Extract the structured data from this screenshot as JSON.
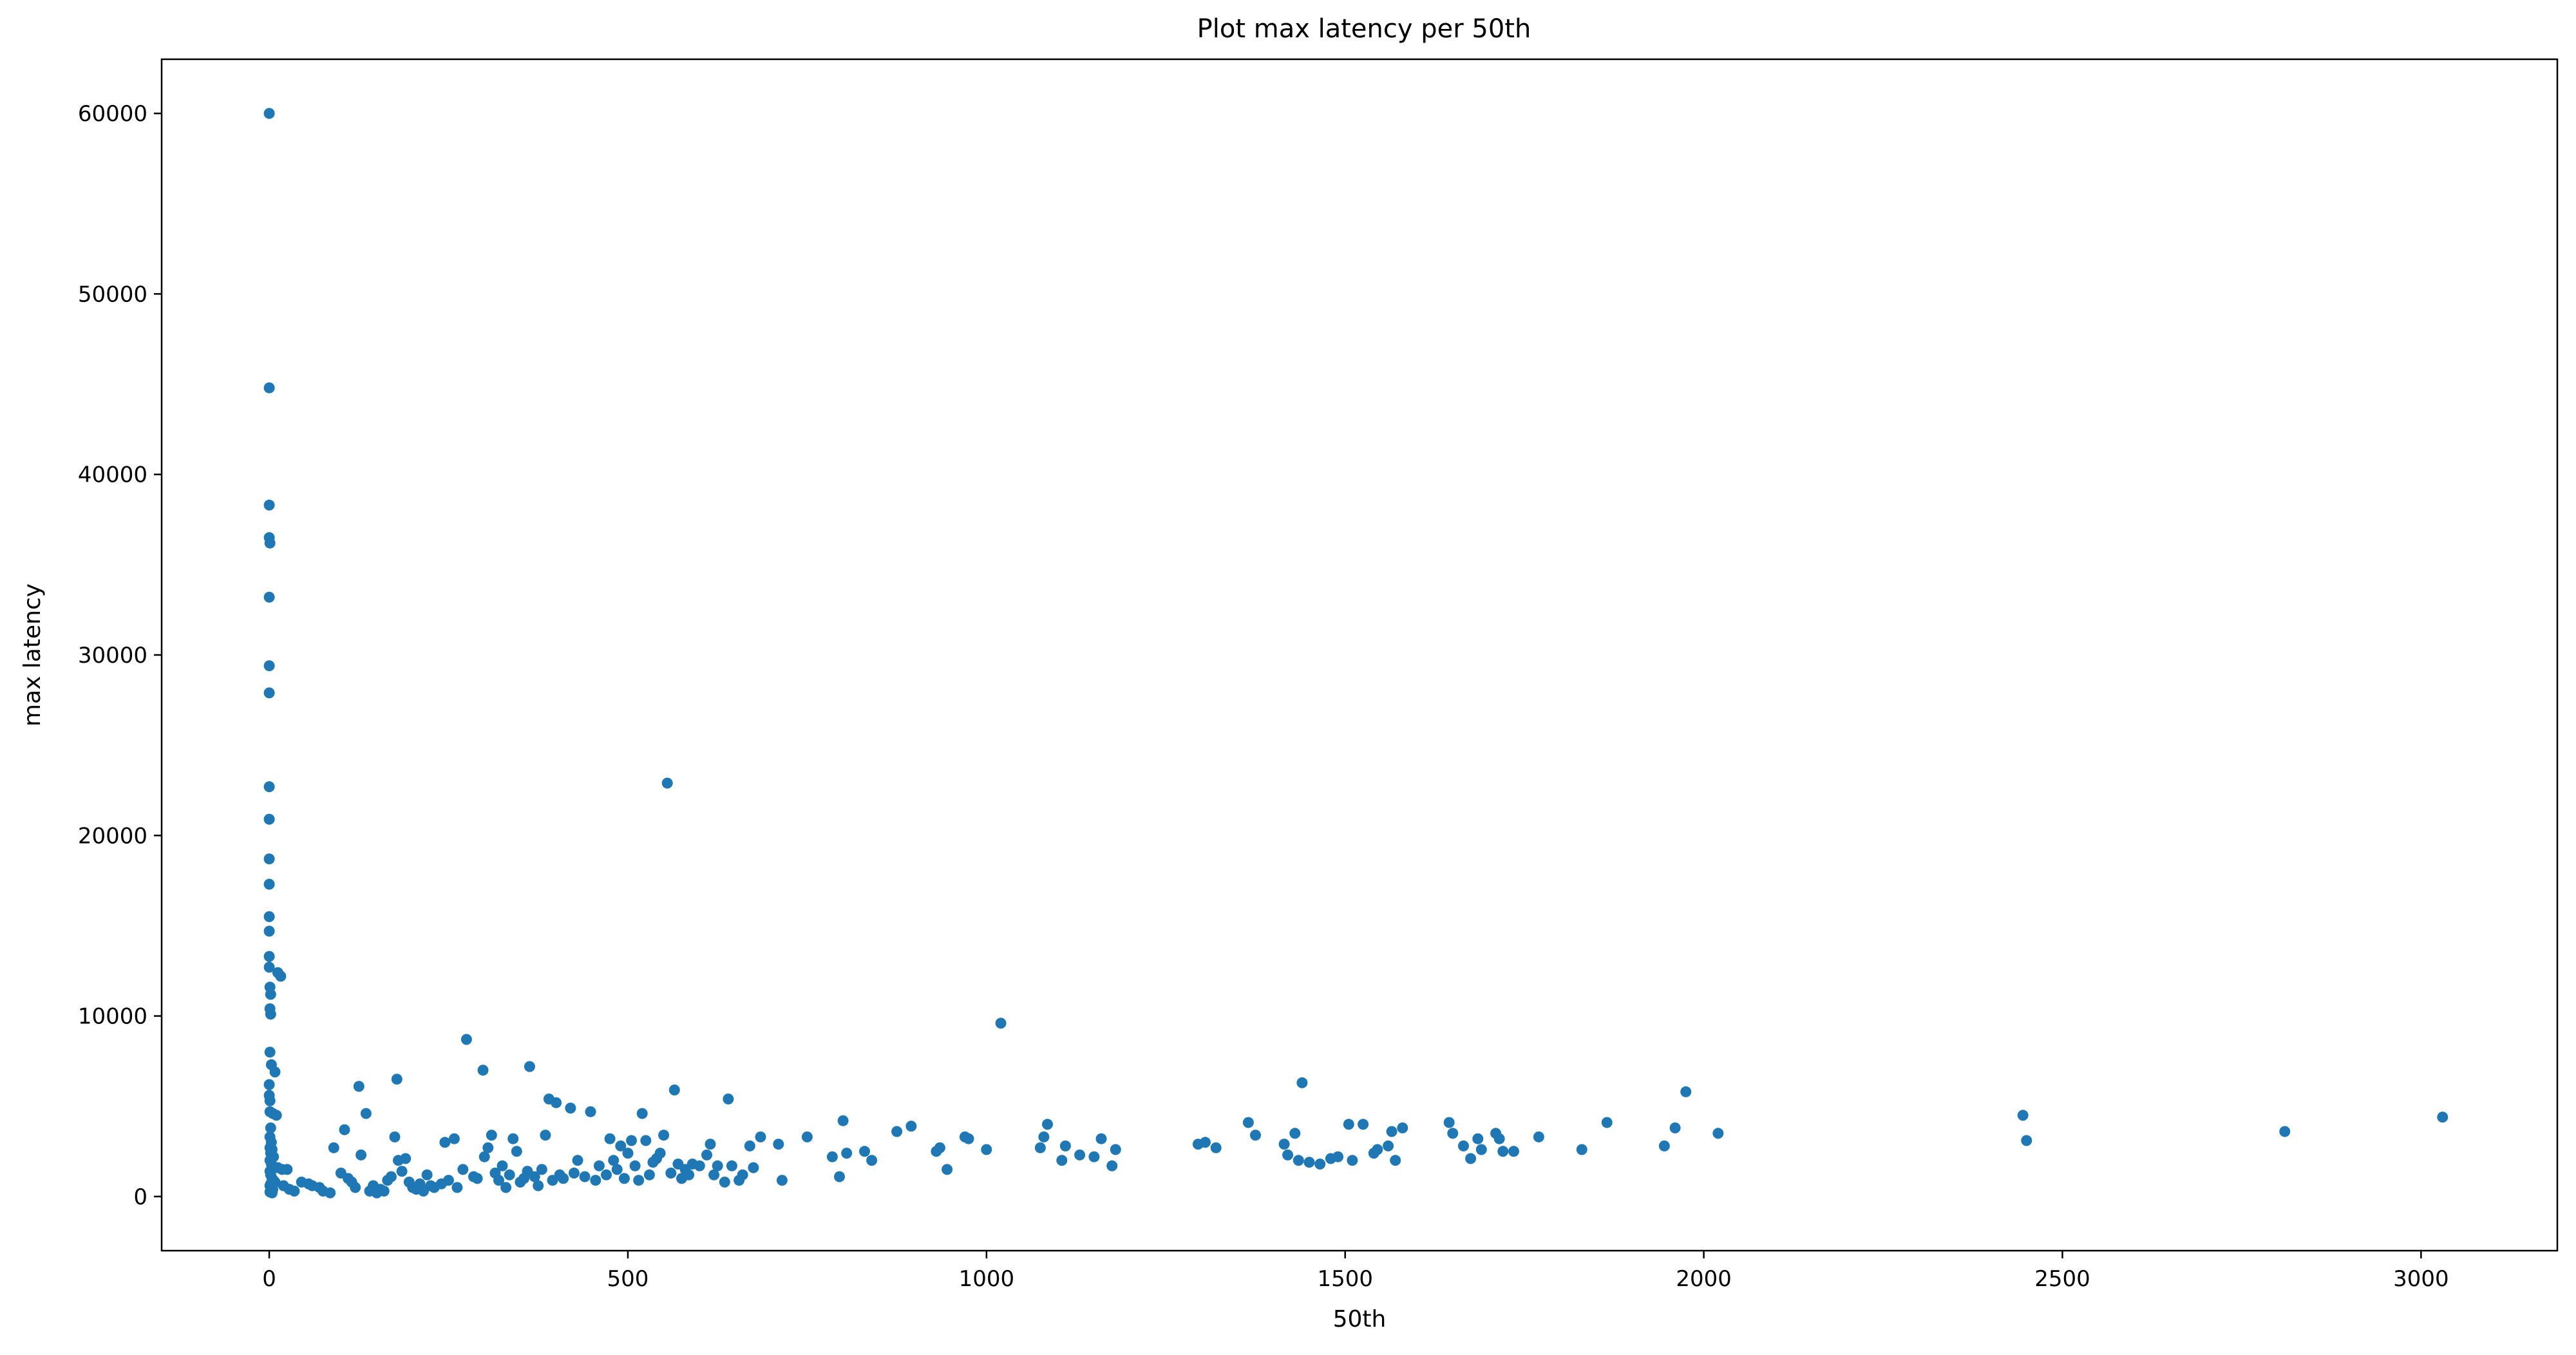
{
  "chart_data": {
    "type": "scatter",
    "title": "Plot max latency per 50th",
    "xlabel": "50th",
    "ylabel": "max latency",
    "xlim": [
      -150,
      3190
    ],
    "ylim": [
      -3000,
      63000
    ],
    "xticks": [
      0,
      500,
      1000,
      1500,
      2000,
      2500,
      3000
    ],
    "yticks": [
      0,
      10000,
      20000,
      30000,
      40000,
      50000,
      60000
    ],
    "xtick_labels": [
      "0",
      "500",
      "1000",
      "1500",
      "2000",
      "2500",
      "3000"
    ],
    "ytick_labels": [
      "0",
      "10000",
      "20000",
      "30000",
      "40000",
      "50000",
      "60000"
    ],
    "grid": false,
    "legend": "none",
    "marker_color": "#1f77b4",
    "points": [
      [
        0,
        60000
      ],
      [
        0,
        44800
      ],
      [
        0,
        38300
      ],
      [
        0,
        36500
      ],
      [
        1,
        36200
      ],
      [
        0,
        33200
      ],
      [
        0,
        29400
      ],
      [
        0,
        27900
      ],
      [
        0,
        22700
      ],
      [
        0,
        20900
      ],
      [
        0,
        18700
      ],
      [
        0,
        17300
      ],
      [
        0,
        15500
      ],
      [
        0,
        14700
      ],
      [
        0,
        13300
      ],
      [
        0,
        12700
      ],
      [
        1,
        11600
      ],
      [
        2,
        11200
      ],
      [
        1,
        10400
      ],
      [
        2,
        10100
      ],
      [
        1,
        8000
      ],
      [
        3,
        7300
      ],
      [
        8,
        6900
      ],
      [
        0,
        6200
      ],
      [
        0,
        5600
      ],
      [
        1,
        5300
      ],
      [
        1,
        4700
      ],
      [
        5,
        4600
      ],
      [
        10,
        4500
      ],
      [
        2,
        3800
      ],
      [
        1,
        3300
      ],
      [
        3,
        3000
      ],
      [
        1,
        2700
      ],
      [
        4,
        2600
      ],
      [
        2,
        2400
      ],
      [
        6,
        2200
      ],
      [
        1,
        2000
      ],
      [
        3,
        1800
      ],
      [
        5,
        1600
      ],
      [
        1,
        1400
      ],
      [
        2,
        1200
      ],
      [
        4,
        1000
      ],
      [
        6,
        900
      ],
      [
        8,
        800
      ],
      [
        2,
        700
      ],
      [
        1,
        600
      ],
      [
        3,
        500
      ],
      [
        5,
        400
      ],
      [
        2,
        300
      ],
      [
        1,
        250
      ],
      [
        4,
        200
      ],
      [
        12,
        12400
      ],
      [
        16,
        12200
      ],
      [
        12,
        1600
      ],
      [
        18,
        1500
      ],
      [
        25,
        1500
      ],
      [
        20,
        600
      ],
      [
        28,
        400
      ],
      [
        35,
        300
      ],
      [
        45,
        800
      ],
      [
        55,
        700
      ],
      [
        60,
        600
      ],
      [
        70,
        500
      ],
      [
        75,
        300
      ],
      [
        85,
        200
      ],
      [
        90,
        2700
      ],
      [
        100,
        1300
      ],
      [
        105,
        3700
      ],
      [
        110,
        1000
      ],
      [
        115,
        800
      ],
      [
        120,
        500
      ],
      [
        125,
        6100
      ],
      [
        128,
        2300
      ],
      [
        135,
        4600
      ],
      [
        140,
        300
      ],
      [
        145,
        600
      ],
      [
        150,
        200
      ],
      [
        155,
        400
      ],
      [
        160,
        300
      ],
      [
        165,
        900
      ],
      [
        170,
        1100
      ],
      [
        175,
        3300
      ],
      [
        178,
        6500
      ],
      [
        180,
        2000
      ],
      [
        185,
        1400
      ],
      [
        190,
        2100
      ],
      [
        195,
        800
      ],
      [
        200,
        500
      ],
      [
        205,
        400
      ],
      [
        210,
        700
      ],
      [
        215,
        300
      ],
      [
        220,
        1200
      ],
      [
        225,
        600
      ],
      [
        230,
        500
      ],
      [
        240,
        700
      ],
      [
        245,
        3000
      ],
      [
        250,
        900
      ],
      [
        258,
        3200
      ],
      [
        262,
        500
      ],
      [
        270,
        1500
      ],
      [
        275,
        8700
      ],
      [
        285,
        1100
      ],
      [
        290,
        1000
      ],
      [
        298,
        7000
      ],
      [
        300,
        2200
      ],
      [
        305,
        2700
      ],
      [
        310,
        3400
      ],
      [
        315,
        1300
      ],
      [
        320,
        900
      ],
      [
        325,
        1700
      ],
      [
        330,
        500
      ],
      [
        335,
        1200
      ],
      [
        340,
        3200
      ],
      [
        345,
        2500
      ],
      [
        350,
        800
      ],
      [
        355,
        1000
      ],
      [
        360,
        1400
      ],
      [
        363,
        7200
      ],
      [
        370,
        1100
      ],
      [
        375,
        600
      ],
      [
        380,
        1500
      ],
      [
        385,
        3400
      ],
      [
        390,
        5400
      ],
      [
        395,
        900
      ],
      [
        400,
        5200
      ],
      [
        405,
        1200
      ],
      [
        410,
        1000
      ],
      [
        420,
        4900
      ],
      [
        425,
        1300
      ],
      [
        430,
        2000
      ],
      [
        440,
        1100
      ],
      [
        448,
        4700
      ],
      [
        455,
        900
      ],
      [
        460,
        1700
      ],
      [
        470,
        1200
      ],
      [
        475,
        3200
      ],
      [
        480,
        2000
      ],
      [
        485,
        1500
      ],
      [
        490,
        2800
      ],
      [
        495,
        1000
      ],
      [
        500,
        2400
      ],
      [
        505,
        3100
      ],
      [
        510,
        1700
      ],
      [
        515,
        900
      ],
      [
        520,
        4600
      ],
      [
        525,
        3100
      ],
      [
        530,
        1200
      ],
      [
        535,
        1900
      ],
      [
        540,
        2100
      ],
      [
        545,
        2400
      ],
      [
        550,
        3400
      ],
      [
        555,
        22900
      ],
      [
        560,
        1300
      ],
      [
        565,
        5900
      ],
      [
        570,
        1800
      ],
      [
        575,
        1000
      ],
      [
        580,
        1500
      ],
      [
        585,
        1200
      ],
      [
        590,
        1800
      ],
      [
        600,
        1700
      ],
      [
        610,
        2300
      ],
      [
        615,
        2900
      ],
      [
        620,
        1200
      ],
      [
        625,
        1700
      ],
      [
        635,
        800
      ],
      [
        640,
        5400
      ],
      [
        645,
        1700
      ],
      [
        655,
        900
      ],
      [
        660,
        1200
      ],
      [
        670,
        2800
      ],
      [
        675,
        1600
      ],
      [
        685,
        3300
      ],
      [
        710,
        2900
      ],
      [
        715,
        900
      ],
      [
        750,
        3300
      ],
      [
        785,
        2200
      ],
      [
        795,
        1100
      ],
      [
        800,
        4200
      ],
      [
        805,
        2400
      ],
      [
        830,
        2500
      ],
      [
        840,
        2000
      ],
      [
        875,
        3600
      ],
      [
        895,
        3900
      ],
      [
        930,
        2500
      ],
      [
        935,
        2700
      ],
      [
        945,
        1500
      ],
      [
        970,
        3300
      ],
      [
        975,
        3200
      ],
      [
        1000,
        2600
      ],
      [
        1020,
        9600
      ],
      [
        1075,
        2700
      ],
      [
        1080,
        3300
      ],
      [
        1085,
        4000
      ],
      [
        1105,
        2000
      ],
      [
        1110,
        2800
      ],
      [
        1130,
        2300
      ],
      [
        1150,
        2200
      ],
      [
        1160,
        3200
      ],
      [
        1175,
        1700
      ],
      [
        1180,
        2600
      ],
      [
        1295,
        2900
      ],
      [
        1305,
        3000
      ],
      [
        1320,
        2700
      ],
      [
        1365,
        4100
      ],
      [
        1375,
        3400
      ],
      [
        1415,
        2900
      ],
      [
        1420,
        2300
      ],
      [
        1430,
        3500
      ],
      [
        1435,
        2000
      ],
      [
        1440,
        6300
      ],
      [
        1450,
        1900
      ],
      [
        1465,
        1800
      ],
      [
        1480,
        2100
      ],
      [
        1490,
        2200
      ],
      [
        1505,
        4000
      ],
      [
        1510,
        2000
      ],
      [
        1525,
        4000
      ],
      [
        1540,
        2400
      ],
      [
        1545,
        2600
      ],
      [
        1560,
        2800
      ],
      [
        1565,
        3600
      ],
      [
        1570,
        2000
      ],
      [
        1580,
        3800
      ],
      [
        1645,
        4100
      ],
      [
        1650,
        3500
      ],
      [
        1665,
        2800
      ],
      [
        1675,
        2100
      ],
      [
        1685,
        3200
      ],
      [
        1690,
        2600
      ],
      [
        1710,
        3500
      ],
      [
        1715,
        3200
      ],
      [
        1720,
        2500
      ],
      [
        1735,
        2500
      ],
      [
        1770,
        3300
      ],
      [
        1830,
        2600
      ],
      [
        1865,
        4100
      ],
      [
        1945,
        2800
      ],
      [
        1960,
        3800
      ],
      [
        1975,
        5800
      ],
      [
        2020,
        3500
      ],
      [
        2445,
        4500
      ],
      [
        2450,
        3100
      ],
      [
        2810,
        3600
      ],
      [
        3030,
        4400
      ]
    ]
  }
}
